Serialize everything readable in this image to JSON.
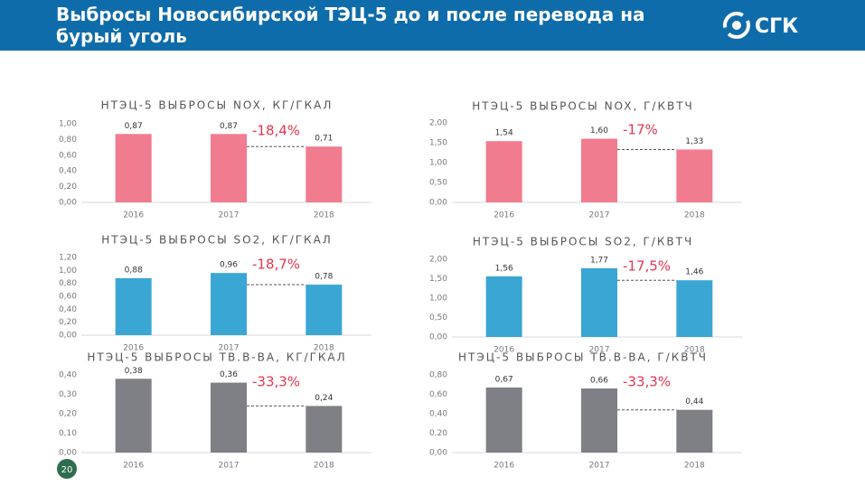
{
  "header": {
    "title": "Выбросы Новосибирской ТЭЦ-5 до и после перевода на бурый уголь",
    "logo": "СГК"
  },
  "page_number": "20",
  "chart_data": [
    {
      "type": "bar",
      "title": "НТЭЦ-5 ВЫБРОСЫ NOX, КГ/ГКАЛ",
      "categories": [
        "2016",
        "2017",
        "2018"
      ],
      "values": [
        0.87,
        0.87,
        0.71
      ],
      "value_labels": [
        "0,87",
        "0,87",
        "0,71"
      ],
      "color": "#f17b8f",
      "ylim": [
        0,
        1
      ],
      "yticks": [
        {
          "value": 0,
          "label": "0,00"
        },
        {
          "value": 0.2,
          "label": "0,20"
        },
        {
          "value": 0.4,
          "label": "0,40"
        },
        {
          "value": 0.6,
          "label": "0,60"
        },
        {
          "value": 0.8,
          "label": "0,80"
        },
        {
          "value": 1,
          "label": "1,00"
        }
      ],
      "annotation": "-18,4%"
    },
    {
      "type": "bar",
      "title": "НТЭЦ-5 ВЫБРОСЫ NOX, Г/КВТЧ",
      "categories": [
        "2016",
        "2017",
        "2018"
      ],
      "values": [
        1.54,
        1.6,
        1.33
      ],
      "value_labels": [
        "1,54",
        "1,60",
        "1,33"
      ],
      "color": "#f17b8f",
      "ylim": [
        0,
        2
      ],
      "yticks": [
        {
          "value": 0,
          "label": "0,00"
        },
        {
          "value": 0.5,
          "label": "0,50"
        },
        {
          "value": 1,
          "label": "1,00"
        },
        {
          "value": 1.5,
          "label": "1,50"
        },
        {
          "value": 2,
          "label": "2,00"
        }
      ],
      "annotation": "-17%"
    },
    {
      "type": "bar",
      "title": "НТЭЦ-5 ВЫБРОСЫ SO2, КГ/ГКАЛ",
      "categories": [
        "2016",
        "2017",
        "2018"
      ],
      "values": [
        0.88,
        0.96,
        0.78
      ],
      "value_labels": [
        "0,88",
        "0,96",
        "0,78"
      ],
      "color": "#3aa6d4",
      "ylim": [
        0,
        1.2
      ],
      "yticks": [
        {
          "value": 0,
          "label": "0,00"
        },
        {
          "value": 0.2,
          "label": "0,20"
        },
        {
          "value": 0.4,
          "label": "0,40"
        },
        {
          "value": 0.6,
          "label": "0,60"
        },
        {
          "value": 0.8,
          "label": "0,80"
        },
        {
          "value": 1,
          "label": "1,00"
        },
        {
          "value": 1.2,
          "label": "1,20"
        }
      ],
      "annotation": "-18,7%"
    },
    {
      "type": "bar",
      "title": "НТЭЦ-5 ВЫБРОСЫ SO2, Г/КВТЧ",
      "categories": [
        "2016",
        "2017",
        "2018"
      ],
      "values": [
        1.56,
        1.77,
        1.46
      ],
      "value_labels": [
        "1,56",
        "1,77",
        "1,46"
      ],
      "color": "#3aa6d4",
      "ylim": [
        0,
        2
      ],
      "yticks": [
        {
          "value": 0,
          "label": "0,00"
        },
        {
          "value": 0.5,
          "label": "0,50"
        },
        {
          "value": 1,
          "label": "1,00"
        },
        {
          "value": 1.5,
          "label": "1,50"
        },
        {
          "value": 2,
          "label": "2,00"
        }
      ],
      "annotation": "-17,5%"
    },
    {
      "type": "bar",
      "title": "НТЭЦ-5 ВЫБРОСЫ ТВ.В-ВА, КГ/ГКАЛ",
      "categories": [
        "2016",
        "2017",
        "2018"
      ],
      "values": [
        0.38,
        0.36,
        0.24
      ],
      "value_labels": [
        "0,38",
        "0,36",
        "0,24"
      ],
      "color": "#7f7f86",
      "ylim": [
        0,
        0.4
      ],
      "yticks": [
        {
          "value": 0,
          "label": "0,00"
        },
        {
          "value": 0.1,
          "label": "0,10"
        },
        {
          "value": 0.2,
          "label": "0,20"
        },
        {
          "value": 0.3,
          "label": "0,30"
        },
        {
          "value": 0.4,
          "label": "0,40"
        }
      ],
      "annotation": "-33,3%"
    },
    {
      "type": "bar",
      "title": "НТЭЦ-5 ВЫБРОСЫ ТВ.В-ВА, Г/КВТЧ",
      "categories": [
        "2016",
        "2017",
        "2018"
      ],
      "values": [
        0.67,
        0.66,
        0.44
      ],
      "value_labels": [
        "0,67",
        "0,66",
        "0,44"
      ],
      "color": "#7f7f86",
      "ylim": [
        0,
        0.8
      ],
      "yticks": [
        {
          "value": 0,
          "label": "0,00"
        },
        {
          "value": 0.2,
          "label": "0,20"
        },
        {
          "value": 0.4,
          "label": "0,40"
        },
        {
          "value": 0.6,
          "label": "0,60"
        },
        {
          "value": 0.8,
          "label": "0,80"
        }
      ],
      "annotation": "-33,3%"
    }
  ]
}
